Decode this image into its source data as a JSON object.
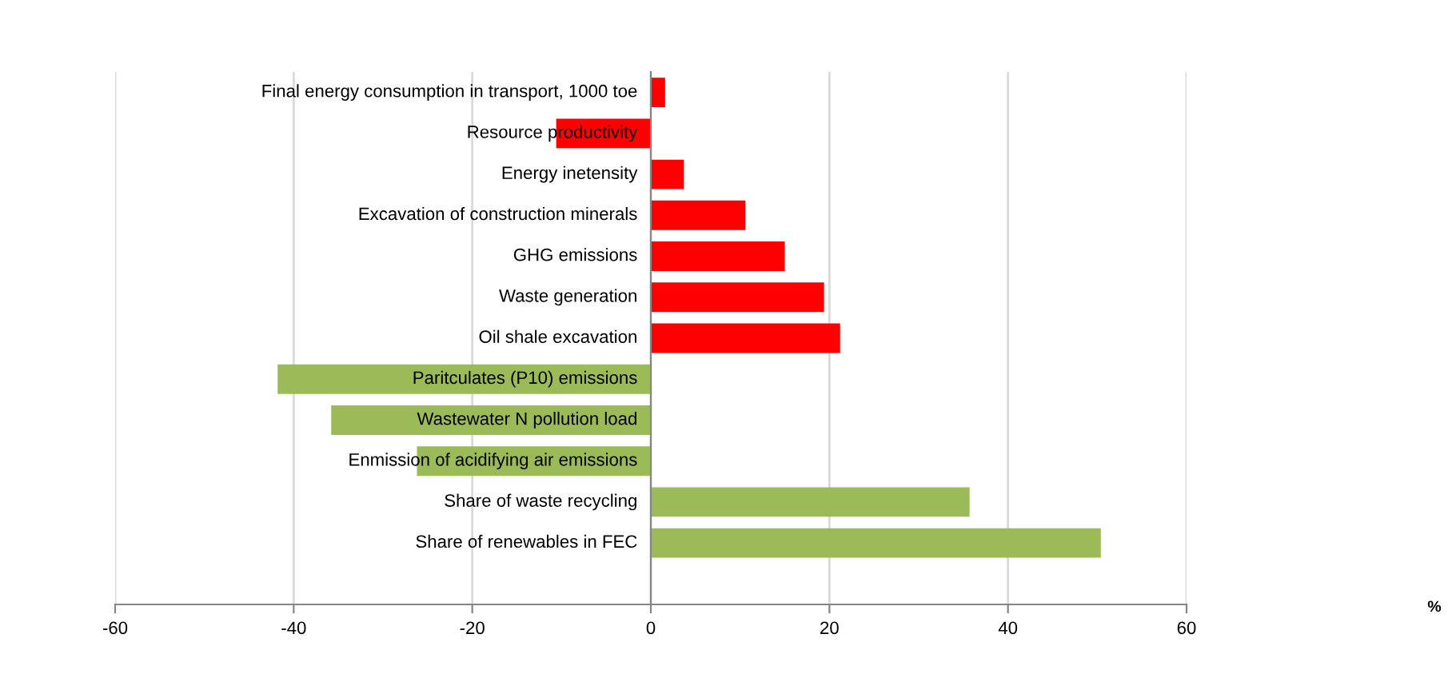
{
  "chart_data": {
    "type": "bar",
    "orientation": "horizontal",
    "annotations": [
      "%"
    ],
    "categories": [
      "Final energy consumption in transport, 1000 toe",
      "Resource productivity",
      "Energy inetensity",
      "Excavation of construction minerals",
      "GHG emissions",
      "Waste generation",
      "Oil shale excavation",
      "Paritculates (P10) emissions",
      "Wastewater N pollution load",
      "Enmission of acidifying air emissions",
      "Share of waste recycling",
      "Share of renewables in FEC",
      null
    ],
    "values": [
      1.6,
      -10.6,
      3.7,
      10.6,
      15.0,
      19.4,
      21.2,
      -41.8,
      -35.8,
      -26.2,
      35.7,
      50.4,
      null
    ],
    "colors": [
      "#ff0000",
      "#ff0000",
      "#ff0000",
      "#ff0000",
      "#ff0000",
      "#ff0000",
      "#ff0000",
      "#9bbb59",
      "#9bbb59",
      "#9bbb59",
      "#9bbb59",
      "#9bbb59",
      "#9bbb59"
    ],
    "xlim": [
      -60,
      60
    ],
    "xticks": [
      -60,
      -40,
      -20,
      0,
      20,
      40,
      60
    ],
    "grid": "x",
    "legend": false
  }
}
